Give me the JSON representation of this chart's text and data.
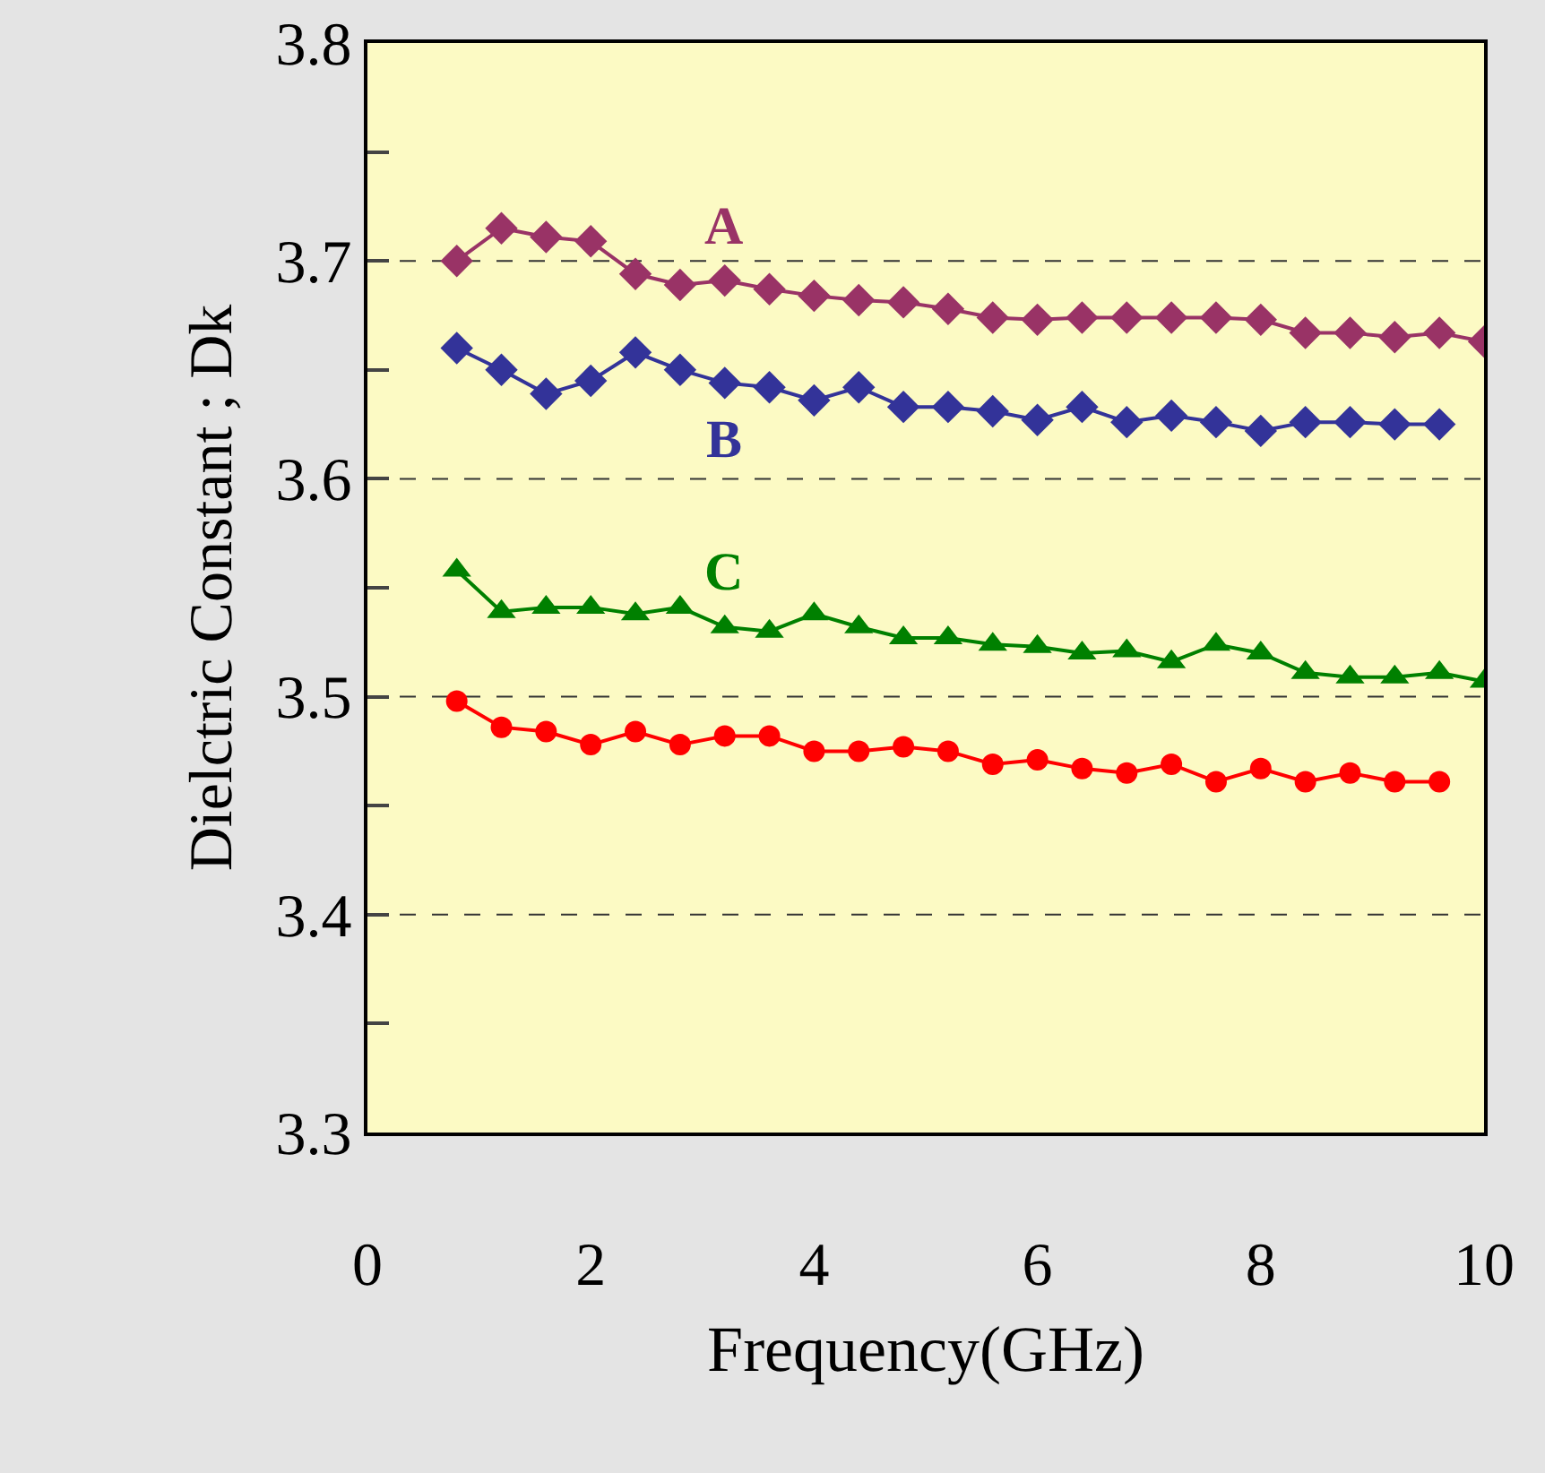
{
  "chart_data": {
    "type": "line",
    "xlabel": "Frequency(GHz)",
    "ylabel": "Dielctric Constant ; Dk",
    "xlim": [
      0,
      10
    ],
    "xticks": [
      0,
      2,
      4,
      6,
      8,
      10
    ],
    "ylim": [
      3.3,
      3.8
    ],
    "yticks": [
      3.3,
      {
        "value": 3.35,
        "label": null
      },
      3.4,
      {
        "value": 3.45,
        "label": null
      },
      3.5,
      {
        "value": 3.55,
        "label": null
      },
      3.6,
      {
        "value": 3.65,
        "label": null
      },
      3.7,
      {
        "value": 3.75,
        "label": null
      },
      3.8
    ],
    "grid": "y",
    "legend": false,
    "series": [
      {
        "name": "A",
        "color": "#993366",
        "marker": "diamond",
        "x": [
          0.8,
          1.2,
          1.6,
          2.0,
          2.4,
          2.8,
          3.2,
          3.6,
          4.0,
          4.4,
          4.8,
          5.2,
          5.6,
          6.0,
          6.4,
          6.8,
          7.2,
          7.6,
          8.0,
          8.4,
          8.8,
          9.2,
          9.6,
          10.0
        ],
        "values": [
          3.7,
          3.715,
          3.711,
          3.709,
          3.694,
          3.689,
          3.691,
          3.687,
          3.684,
          3.682,
          3.681,
          3.678,
          3.674,
          3.673,
          3.674,
          3.674,
          3.674,
          3.674,
          3.673,
          3.667,
          3.667,
          3.665,
          3.667,
          3.663
        ]
      },
      {
        "name": "B",
        "color": "#333399",
        "marker": "diamond",
        "x": [
          0.8,
          1.2,
          1.6,
          2.0,
          2.4,
          2.8,
          3.2,
          3.6,
          4.0,
          4.4,
          4.8,
          5.2,
          5.6,
          6.0,
          6.4,
          6.8,
          7.2,
          7.6,
          8.0,
          8.4,
          8.8,
          9.2,
          9.6
        ],
        "values": [
          3.66,
          3.65,
          3.639,
          3.645,
          3.658,
          3.65,
          3.644,
          3.642,
          3.636,
          3.642,
          3.633,
          3.633,
          3.631,
          3.627,
          3.633,
          3.626,
          3.629,
          3.626,
          3.622,
          3.626,
          3.626,
          3.625,
          3.625
        ]
      },
      {
        "name": "C",
        "color": "#008000",
        "marker": "triangle",
        "x": [
          0.8,
          1.2,
          1.6,
          2.0,
          2.4,
          2.8,
          3.2,
          3.6,
          4.0,
          4.4,
          4.8,
          5.2,
          5.6,
          6.0,
          6.4,
          6.8,
          7.2,
          7.6,
          8.0,
          8.4,
          8.8,
          9.2,
          9.6,
          10.0
        ],
        "values": [
          3.558,
          3.539,
          3.541,
          3.541,
          3.538,
          3.541,
          3.532,
          3.53,
          3.538,
          3.532,
          3.527,
          3.527,
          3.524,
          3.523,
          3.52,
          3.521,
          3.516,
          3.524,
          3.52,
          3.511,
          3.509,
          3.509,
          3.511,
          3.507
        ]
      },
      {
        "color": "#ff0000",
        "marker": "circle",
        "x": [
          0.8,
          1.2,
          1.6,
          2.0,
          2.4,
          2.8,
          3.2,
          3.6,
          4.0,
          4.4,
          4.8,
          5.2,
          5.6,
          6.0,
          6.4,
          6.8,
          7.2,
          7.6,
          8.0,
          8.4,
          8.8,
          9.2,
          9.6
        ],
        "values": [
          3.498,
          3.486,
          3.484,
          3.478,
          3.484,
          3.478,
          3.482,
          3.482,
          3.475,
          3.475,
          3.477,
          3.475,
          3.469,
          3.471,
          3.467,
          3.465,
          3.469,
          3.461,
          3.467,
          3.461,
          3.465,
          3.461,
          3.461
        ]
      }
    ]
  }
}
